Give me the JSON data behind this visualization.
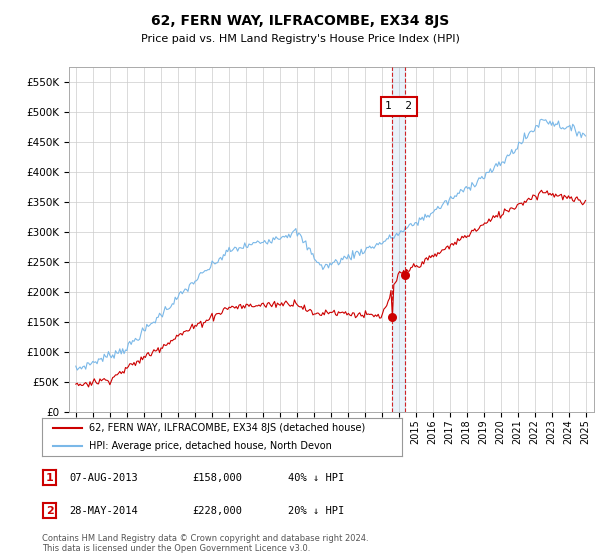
{
  "title": "62, FERN WAY, ILFRACOMBE, EX34 8JS",
  "subtitle": "Price paid vs. HM Land Registry's House Price Index (HPI)",
  "ylim": [
    0,
    575000
  ],
  "yticks": [
    0,
    50000,
    100000,
    150000,
    200000,
    250000,
    300000,
    350000,
    400000,
    450000,
    500000,
    550000
  ],
  "ytick_labels": [
    "£0",
    "£50K",
    "£100K",
    "£150K",
    "£200K",
    "£250K",
    "£300K",
    "£350K",
    "£400K",
    "£450K",
    "£500K",
    "£550K"
  ],
  "hpi_color": "#7ab8e8",
  "price_color": "#cc0000",
  "vline_color": "#cc0000",
  "shade_color": "#ddeeff",
  "grid_color": "#cccccc",
  "background_color": "#ffffff",
  "legend_label_price": "62, FERN WAY, ILFRACOMBE, EX34 8JS (detached house)",
  "legend_label_hpi": "HPI: Average price, detached house, North Devon",
  "transaction1_label": "1",
  "transaction1_date": "07-AUG-2013",
  "transaction1_price": "£158,000",
  "transaction1_pct": "40% ↓ HPI",
  "transaction2_label": "2",
  "transaction2_date": "28-MAY-2014",
  "transaction2_price": "£228,000",
  "transaction2_pct": "20% ↓ HPI",
  "copyright_text": "Contains HM Land Registry data © Crown copyright and database right 2024.\nThis data is licensed under the Open Government Licence v3.0.",
  "t1_year": 2013.6,
  "t2_year": 2014.4,
  "t1_price_val": 158000,
  "t2_price_val": 228000,
  "xlim_left": 1994.6,
  "xlim_right": 2025.5
}
